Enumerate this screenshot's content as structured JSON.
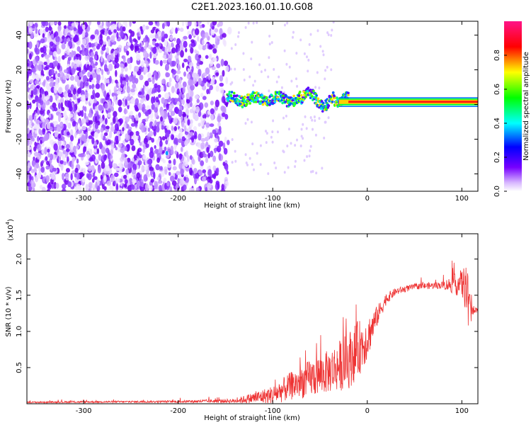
{
  "title": "C2E1.2023.160.01.10.G08",
  "chart_data": [
    {
      "type": "heatmap",
      "xlabel": "Height of straight line (km)",
      "ylabel": "Frequency (Hz)",
      "xlim": [
        -360,
        117
      ],
      "ylim": [
        -50,
        48
      ],
      "xticks": [
        -300,
        -200,
        -100,
        0,
        100
      ],
      "yticks": [
        -40,
        -20,
        0,
        20,
        40
      ],
      "colorbar": {
        "label": "Normalized spectral amplitude",
        "range": [
          0,
          1
        ],
        "ticks": [
          "0.0",
          "0.2",
          "0.4",
          "0.6",
          "0.8"
        ],
        "tick_values": [
          0,
          0.2,
          0.4,
          0.6,
          0.8
        ],
        "colors": [
          "#ffffff",
          "#7700ff",
          "#0000ff",
          "#00ffff",
          "#00ff00",
          "#ffff00",
          "#ff0000",
          "#ff00aa"
        ]
      },
      "description_regions": [
        {
          "x_range": [
            -360,
            -145
          ],
          "y_range": [
            -50,
            48
          ],
          "amplitude": [
            0.05,
            0.3
          ]
        },
        {
          "x_range": [
            -145,
            117
          ],
          "y_center_hz": 1.5,
          "amplitude": [
            0.6,
            1.0
          ]
        }
      ]
    },
    {
      "type": "line",
      "xlabel": "Height of straight line (km)",
      "ylabel": "SNR (10 * v/v)",
      "y_scale_label": "(x10",
      "y_scale_exponent": "4",
      "xlim": [
        -360,
        117
      ],
      "ylim": [
        0,
        23500
      ],
      "xticks": [
        -300,
        -200,
        -100,
        0,
        100
      ],
      "yticks": [
        5000,
        10000,
        15000,
        20000
      ],
      "ytick_labels": [
        "0.5",
        "1.0",
        "1.5",
        "2.0"
      ],
      "line_color": "#ee3333",
      "series_envelope": {
        "x": [
          -360,
          -300,
          -200,
          -140,
          -120,
          -100,
          -80,
          -60,
          -40,
          -20,
          -10,
          0,
          10,
          20,
          30,
          50,
          80,
          100,
          105,
          110,
          117
        ],
        "y": [
          200,
          250,
          300,
          400,
          800,
          1200,
          2500,
          3500,
          4500,
          6000,
          7500,
          9000,
          12000,
          14500,
          15500,
          16200,
          16400,
          16600,
          16000,
          12800,
          13000
        ],
        "noise": [
          100,
          120,
          150,
          300,
          800,
          1300,
          2000,
          2600,
          3000,
          4000,
          4000,
          3000,
          1500,
          800,
          500,
          400,
          500,
          2000,
          3500,
          1000,
          200
        ]
      }
    }
  ]
}
